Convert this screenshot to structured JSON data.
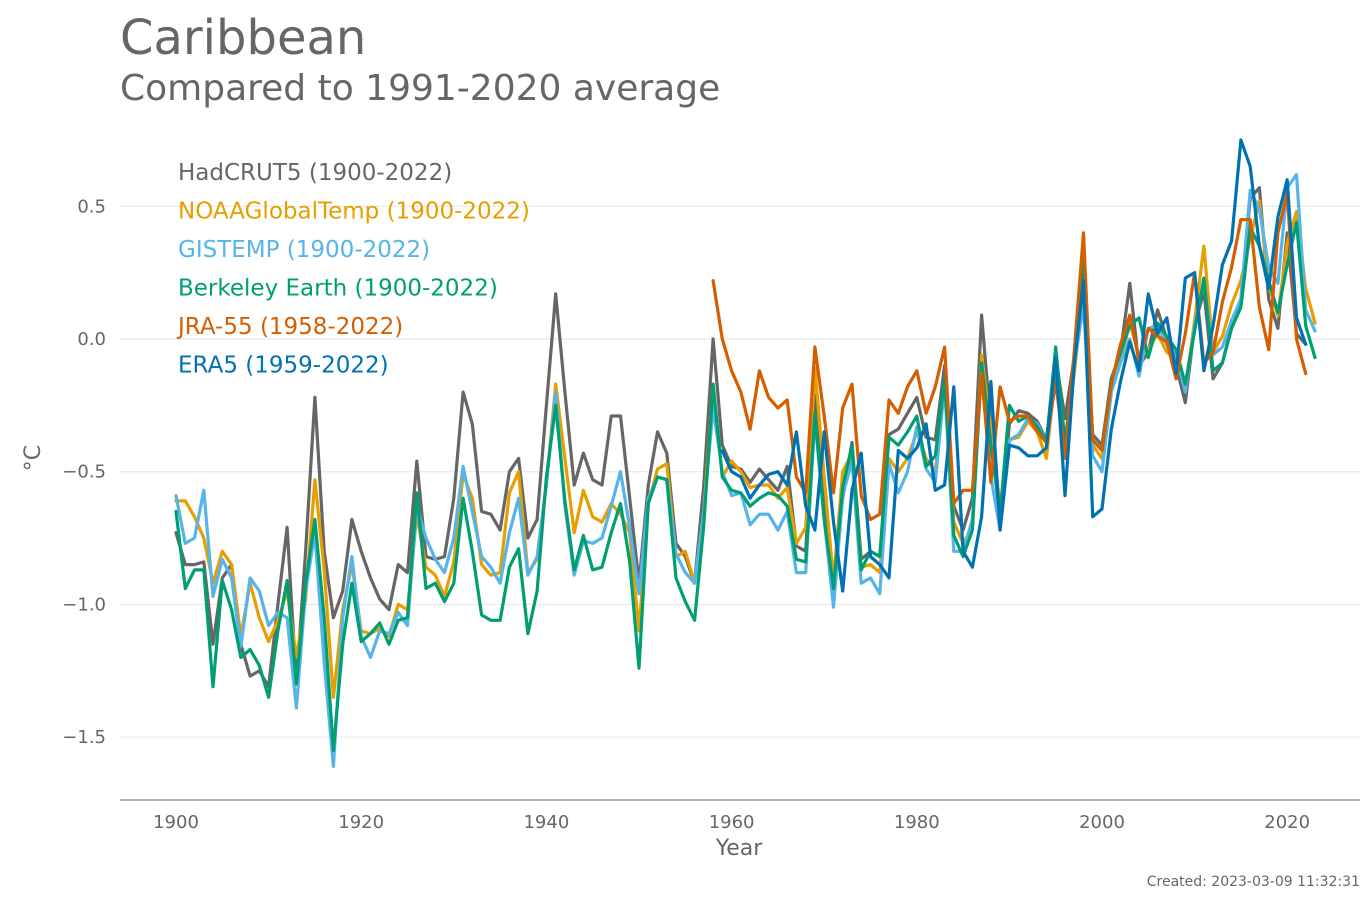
{
  "title": "Caribbean",
  "subtitle": "Compared to 1991-2020 average",
  "created": "Created: 2023-03-09 11:32:31",
  "chart_data": {
    "type": "line",
    "xlabel": "Year",
    "ylabel": "°C",
    "xlim": [
      1896,
      2026
    ],
    "ylim": [
      -1.75,
      0.85
    ],
    "xticks": [
      1900,
      1920,
      1940,
      1960,
      1980,
      2000,
      2020
    ],
    "yticks": [
      0.5,
      0.0,
      -0.5,
      -1.0,
      -1.5
    ],
    "ytick_labels": [
      "0.5",
      "0.0",
      "−0.5",
      "−1.0",
      "−1.5"
    ],
    "grid": "horizontal",
    "legend_position": "top-left",
    "series": [
      {
        "name": "HadCRUT5 (1900-2022)",
        "color": "#666666",
        "start": 1900,
        "values": [
          -0.73,
          -0.85,
          -0.85,
          -0.84,
          -1.15,
          -0.9,
          -0.85,
          -1.15,
          -1.27,
          -1.25,
          -1.31,
          -1.0,
          -0.71,
          -1.3,
          -0.8,
          -0.22,
          -0.8,
          -1.05,
          -0.95,
          -0.68,
          -0.8,
          -0.9,
          -0.98,
          -1.02,
          -0.85,
          -0.88,
          -0.46,
          -0.82,
          -0.83,
          -0.82,
          -0.6,
          -0.2,
          -0.32,
          -0.65,
          -0.66,
          -0.72,
          -0.5,
          -0.45,
          -0.75,
          -0.68,
          -0.25,
          0.17,
          -0.2,
          -0.55,
          -0.43,
          -0.53,
          -0.55,
          -0.29,
          -0.29,
          -0.6,
          -0.92,
          -0.55,
          -0.35,
          -0.43,
          -0.77,
          -0.82,
          -0.92,
          -0.55,
          0.0,
          -0.4,
          -0.48,
          -0.49,
          -0.54,
          -0.49,
          -0.53,
          -0.57,
          -0.48,
          -0.78,
          -0.8,
          -0.21,
          -0.62,
          -0.92,
          -0.6,
          -0.39,
          -0.83,
          -0.8,
          -0.82,
          -0.36,
          -0.34,
          -0.28,
          -0.22,
          -0.37,
          -0.38,
          -0.1,
          -0.63,
          -0.72,
          -0.6,
          0.09,
          -0.33,
          -0.7,
          -0.32,
          -0.27,
          -0.28,
          -0.31,
          -0.38,
          -0.07,
          -0.3,
          -0.07,
          0.17,
          -0.36,
          -0.4,
          -0.15,
          -0.05,
          0.21,
          -0.1,
          -0.05,
          0.11,
          0.0,
          -0.1,
          -0.24,
          0.05,
          0.18,
          -0.15,
          -0.09,
          0.05,
          0.15,
          0.53,
          0.57,
          0.15,
          0.04,
          0.4,
          0.02,
          -0.02
        ]
      },
      {
        "name": "NOAAGlobalTemp (1900-2022)",
        "color": "#E69F00",
        "start": 1900,
        "values": [
          -0.61,
          -0.61,
          -0.67,
          -0.75,
          -0.92,
          -0.8,
          -0.85,
          -1.12,
          -0.92,
          -1.05,
          -1.14,
          -1.06,
          -0.95,
          -1.2,
          -0.98,
          -0.53,
          -0.87,
          -1.35,
          -1.02,
          -0.85,
          -1.1,
          -1.11,
          -1.09,
          -1.12,
          -1.0,
          -1.02,
          -0.66,
          -0.86,
          -0.89,
          -0.97,
          -0.84,
          -0.51,
          -0.6,
          -0.85,
          -0.89,
          -0.88,
          -0.58,
          -0.5,
          -0.88,
          -0.83,
          -0.55,
          -0.17,
          -0.45,
          -0.73,
          -0.57,
          -0.67,
          -0.69,
          -0.62,
          -0.66,
          -0.73,
          -1.1,
          -0.62,
          -0.49,
          -0.47,
          -0.82,
          -0.8,
          -0.92,
          -0.65,
          -0.18,
          -0.52,
          -0.46,
          -0.5,
          -0.56,
          -0.55,
          -0.55,
          -0.6,
          -0.56,
          -0.77,
          -0.71,
          -0.11,
          -0.52,
          -0.91,
          -0.5,
          -0.43,
          -0.86,
          -0.85,
          -0.88,
          -0.45,
          -0.5,
          -0.45,
          -0.35,
          -0.45,
          -0.5,
          -0.18,
          -0.69,
          -0.77,
          -0.71,
          -0.06,
          -0.34,
          -0.63,
          -0.38,
          -0.37,
          -0.31,
          -0.35,
          -0.45,
          -0.12,
          -0.41,
          -0.13,
          0.19,
          -0.4,
          -0.45,
          -0.19,
          -0.08,
          0.06,
          -0.06,
          -0.04,
          0.02,
          -0.05,
          -0.07,
          -0.19,
          0.07,
          0.35,
          -0.05,
          0.01,
          0.13,
          0.22,
          0.38,
          0.52,
          0.2,
          0.09,
          0.36,
          0.48,
          0.19,
          0.06
        ]
      },
      {
        "name": "GISTEMP (1900-2022)",
        "color": "#56B4E9",
        "start": 1900,
        "values": [
          -0.59,
          -0.77,
          -0.75,
          -0.57,
          -0.97,
          -0.83,
          -0.9,
          -1.16,
          -0.9,
          -0.95,
          -1.08,
          -1.03,
          -1.05,
          -1.39,
          -0.95,
          -0.73,
          -1.22,
          -1.61,
          -1.05,
          -0.82,
          -1.12,
          -1.2,
          -1.1,
          -1.11,
          -1.03,
          -1.08,
          -0.63,
          -0.75,
          -0.83,
          -0.88,
          -0.75,
          -0.48,
          -0.65,
          -0.82,
          -0.86,
          -0.92,
          -0.73,
          -0.6,
          -0.89,
          -0.82,
          -0.55,
          -0.2,
          -0.63,
          -0.89,
          -0.76,
          -0.77,
          -0.75,
          -0.63,
          -0.5,
          -0.71,
          -0.96,
          -0.6,
          -0.52,
          -0.53,
          -0.81,
          -0.88,
          -0.92,
          -0.65,
          -0.26,
          -0.5,
          -0.59,
          -0.58,
          -0.7,
          -0.66,
          -0.66,
          -0.72,
          -0.65,
          -0.88,
          -0.88,
          -0.3,
          -0.68,
          -1.01,
          -0.59,
          -0.46,
          -0.92,
          -0.9,
          -0.96,
          -0.47,
          -0.58,
          -0.5,
          -0.33,
          -0.49,
          -0.54,
          -0.17,
          -0.8,
          -0.8,
          -0.68,
          -0.11,
          -0.52,
          -0.72,
          -0.38,
          -0.36,
          -0.3,
          -0.32,
          -0.39,
          -0.14,
          -0.4,
          -0.1,
          0.13,
          -0.44,
          -0.5,
          -0.2,
          -0.09,
          0.0,
          -0.14,
          0.04,
          0.05,
          -0.02,
          -0.06,
          -0.2,
          0.05,
          0.22,
          -0.06,
          -0.03,
          0.07,
          0.15,
          0.56,
          0.49,
          0.27,
          0.21,
          0.57,
          0.62,
          0.11,
          0.03
        ]
      },
      {
        "name": "Berkeley Earth (1900-2022)",
        "color": "#009E73",
        "start": 1900,
        "values": [
          -0.65,
          -0.94,
          -0.87,
          -0.87,
          -1.31,
          -0.91,
          -1.02,
          -1.2,
          -1.17,
          -1.23,
          -1.35,
          -1.1,
          -0.91,
          -1.3,
          -0.92,
          -0.68,
          -1.05,
          -1.55,
          -1.15,
          -0.92,
          -1.14,
          -1.11,
          -1.07,
          -1.15,
          -1.06,
          -1.05,
          -0.58,
          -0.94,
          -0.92,
          -0.99,
          -0.92,
          -0.6,
          -0.8,
          -1.04,
          -1.06,
          -1.06,
          -0.86,
          -0.79,
          -1.11,
          -0.95,
          -0.52,
          -0.25,
          -0.61,
          -0.87,
          -0.74,
          -0.87,
          -0.86,
          -0.73,
          -0.62,
          -0.84,
          -1.24,
          -0.62,
          -0.52,
          -0.53,
          -0.9,
          -0.99,
          -1.06,
          -0.7,
          -0.17,
          -0.52,
          -0.57,
          -0.58,
          -0.63,
          -0.6,
          -0.58,
          -0.59,
          -0.63,
          -0.83,
          -0.84,
          -0.28,
          -0.68,
          -0.94,
          -0.56,
          -0.4,
          -0.87,
          -0.8,
          -0.82,
          -0.37,
          -0.4,
          -0.35,
          -0.29,
          -0.48,
          -0.44,
          -0.15,
          -0.74,
          -0.82,
          -0.72,
          -0.09,
          -0.4,
          -0.66,
          -0.25,
          -0.31,
          -0.29,
          -0.33,
          -0.39,
          -0.03,
          -0.39,
          -0.1,
          0.32,
          -0.38,
          -0.42,
          -0.15,
          -0.05,
          0.05,
          0.08,
          -0.07,
          0.06,
          0.01,
          -0.04,
          -0.17,
          0.03,
          0.23,
          -0.12,
          -0.09,
          0.04,
          0.12,
          0.42,
          0.35,
          0.22,
          0.1,
          0.28,
          0.44,
          0.05,
          -0.07
        ]
      },
      {
        "name": "JRA-55 (1958-2022)",
        "color": "#D55E00",
        "start": 1958,
        "values": [
          0.22,
          0.0,
          -0.12,
          -0.2,
          -0.34,
          -0.12,
          -0.22,
          -0.26,
          -0.23,
          -0.52,
          -0.58,
          -0.03,
          -0.29,
          -0.58,
          -0.26,
          -0.17,
          -0.59,
          -0.68,
          -0.66,
          -0.23,
          -0.28,
          -0.18,
          -0.12,
          -0.28,
          -0.18,
          -0.03,
          -0.62,
          -0.57,
          -0.57,
          -0.13,
          -0.54,
          -0.18,
          -0.31,
          -0.29,
          -0.29,
          -0.35,
          -0.39,
          -0.16,
          -0.45,
          -0.05,
          0.4,
          -0.38,
          -0.42,
          -0.17,
          -0.02,
          0.09,
          -0.08,
          0.04,
          0.01,
          -0.01,
          -0.15,
          0.02,
          0.25,
          -0.09,
          -0.05,
          0.14,
          0.27,
          0.45,
          0.45,
          0.12,
          -0.04,
          0.4,
          0.55,
          0.0,
          -0.13
        ]
      },
      {
        "name": "ERA5 (1959-2022)",
        "color": "#0072B2",
        "start": 1959,
        "values": [
          -0.42,
          -0.5,
          -0.52,
          -0.6,
          -0.55,
          -0.51,
          -0.5,
          -0.55,
          -0.35,
          -0.63,
          -0.72,
          -0.35,
          -0.69,
          -0.95,
          -0.57,
          -0.43,
          -0.82,
          -0.85,
          -0.9,
          -0.42,
          -0.45,
          -0.41,
          -0.32,
          -0.57,
          -0.55,
          -0.18,
          -0.8,
          -0.86,
          -0.67,
          -0.16,
          -0.72,
          -0.4,
          -0.41,
          -0.44,
          -0.44,
          -0.41,
          -0.07,
          -0.59,
          -0.1,
          0.22,
          -0.67,
          -0.64,
          -0.34,
          -0.16,
          -0.01,
          -0.12,
          0.17,
          0.02,
          0.08,
          -0.13,
          0.23,
          0.25,
          -0.12,
          0.05,
          0.28,
          0.37,
          0.75,
          0.65,
          0.35,
          0.19,
          0.46,
          0.6,
          0.08,
          -0.02
        ]
      }
    ]
  }
}
